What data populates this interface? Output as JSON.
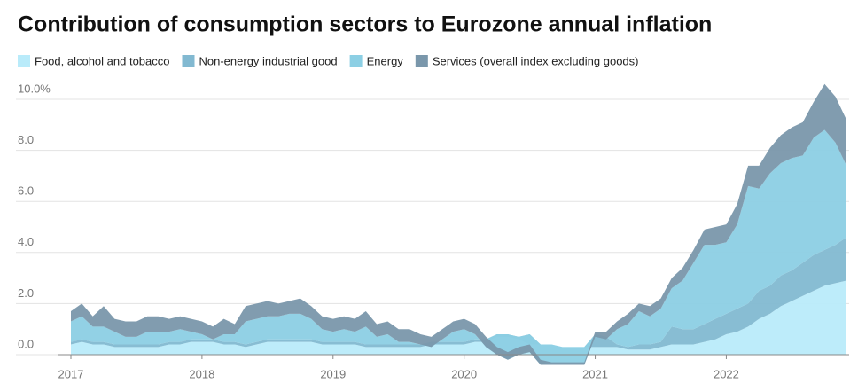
{
  "chart_data": {
    "type": "stacked_area",
    "title": "Contribution of consumption sectors to Eurozone annual inflation",
    "categories": [
      "2017",
      null,
      null,
      null,
      null,
      null,
      null,
      null,
      null,
      null,
      null,
      null,
      "2018",
      null,
      null,
      null,
      null,
      null,
      null,
      null,
      null,
      null,
      null,
      null,
      "2019",
      null,
      null,
      null,
      null,
      null,
      null,
      null,
      null,
      null,
      null,
      null,
      "2020",
      null,
      null,
      null,
      null,
      null,
      null,
      null,
      null,
      null,
      null,
      null,
      "2021",
      null,
      null,
      null,
      null,
      null,
      null,
      null,
      null,
      null,
      null,
      null,
      "2022",
      null,
      null,
      null,
      null,
      null,
      null,
      null,
      null,
      null,
      null,
      null
    ],
    "series": [
      {
        "name": "Food, alcohol and tobacco",
        "color": "#b9ebfa",
        "values": [
          0.4,
          0.5,
          0.4,
          0.4,
          0.3,
          0.3,
          0.3,
          0.3,
          0.3,
          0.4,
          0.4,
          0.5,
          0.5,
          0.5,
          0.4,
          0.4,
          0.3,
          0.4,
          0.5,
          0.5,
          0.5,
          0.5,
          0.5,
          0.4,
          0.4,
          0.4,
          0.4,
          0.3,
          0.3,
          0.3,
          0.3,
          0.3,
          0.3,
          0.4,
          0.4,
          0.4,
          0.4,
          0.5,
          0.5,
          0.7,
          0.7,
          0.6,
          0.4,
          0.4,
          0.4,
          0.3,
          0.3,
          0.3,
          0.3,
          0.3,
          0.3,
          0.2,
          0.2,
          0.2,
          0.3,
          0.4,
          0.4,
          0.4,
          0.5,
          0.6,
          0.8,
          0.9,
          1.1,
          1.4,
          1.6,
          1.9,
          2.1,
          2.3,
          2.5,
          2.7,
          2.8,
          2.9
        ]
      },
      {
        "name": "Non-energy industrial good",
        "color": "#82b9d1",
        "values": [
          0.1,
          0.1,
          0.1,
          0.1,
          0.1,
          0.1,
          0.1,
          0.1,
          0.1,
          0.1,
          0.1,
          0.1,
          0.1,
          0.1,
          0.1,
          0.1,
          0.1,
          0.1,
          0.1,
          0.1,
          0.1,
          0.1,
          0.1,
          0.1,
          0.1,
          0.1,
          0.1,
          0.1,
          0.1,
          0.1,
          0.1,
          0.1,
          0.1,
          0.1,
          0.1,
          0.1,
          0.1,
          0.1,
          0.1,
          0.1,
          0.1,
          0.1,
          0.4,
          0.0,
          0.0,
          0.0,
          0.0,
          0.0,
          0.5,
          0.4,
          0.1,
          0.1,
          0.2,
          0.2,
          0.2,
          0.7,
          0.6,
          0.6,
          0.7,
          0.8,
          0.8,
          0.9,
          0.9,
          1.1,
          1.1,
          1.2,
          1.2,
          1.3,
          1.4,
          1.4,
          1.5,
          1.7
        ]
      },
      {
        "name": "Energy",
        "color": "#8ccfe4",
        "values": [
          0.8,
          0.9,
          0.6,
          0.6,
          0.5,
          0.3,
          0.3,
          0.5,
          0.5,
          0.4,
          0.5,
          0.3,
          0.2,
          0.0,
          0.3,
          0.3,
          0.9,
          0.9,
          0.9,
          0.9,
          1.0,
          1.0,
          0.8,
          0.5,
          0.4,
          0.5,
          0.4,
          0.7,
          0.3,
          0.4,
          0.1,
          0.1,
          0.0,
          -0.2,
          0.1,
          0.4,
          0.5,
          0.2,
          -0.3,
          -0.8,
          -1.0,
          -0.7,
          -0.7,
          -0.8,
          -0.8,
          -0.7,
          -0.7,
          -0.7,
          -0.1,
          -0.1,
          0.6,
          0.9,
          1.3,
          1.1,
          1.3,
          1.5,
          1.9,
          2.6,
          3.1,
          2.9,
          2.8,
          3.3,
          4.6,
          4.0,
          4.4,
          4.4,
          4.4,
          4.2,
          4.6,
          4.7,
          4.0,
          2.8
        ]
      },
      {
        "name": "Services (overall index excluding goods)",
        "color": "#7a97ab",
        "values": [
          0.4,
          0.5,
          0.4,
          0.8,
          0.5,
          0.6,
          0.6,
          0.6,
          0.6,
          0.5,
          0.5,
          0.5,
          0.5,
          0.5,
          0.6,
          0.4,
          0.6,
          0.6,
          0.6,
          0.5,
          0.5,
          0.6,
          0.5,
          0.5,
          0.5,
          0.5,
          0.5,
          0.6,
          0.5,
          0.5,
          0.5,
          0.5,
          0.4,
          0.4,
          0.4,
          0.4,
          0.4,
          0.4,
          0.4,
          0.3,
          0.3,
          0.3,
          0.3,
          0.2,
          0.1,
          0.1,
          0.1,
          0.1,
          0.2,
          0.3,
          0.3,
          0.4,
          0.3,
          0.4,
          0.4,
          0.4,
          0.5,
          0.5,
          0.6,
          0.7,
          0.7,
          0.8,
          0.8,
          0.9,
          1.0,
          1.1,
          1.2,
          1.3,
          1.4,
          1.8,
          1.8,
          1.8
        ]
      }
    ],
    "ylim": [
      0,
      10.6
    ],
    "yticks": [
      {
        "value": 0,
        "label": "0.0"
      },
      {
        "value": 2,
        "label": "2.0"
      },
      {
        "value": 4,
        "label": "4.0"
      },
      {
        "value": 6,
        "label": "6.0"
      },
      {
        "value": 8,
        "label": "8.0"
      },
      {
        "value": 10,
        "label": "10.0%"
      }
    ],
    "grid": true,
    "stacked": true,
    "legend": "top"
  }
}
